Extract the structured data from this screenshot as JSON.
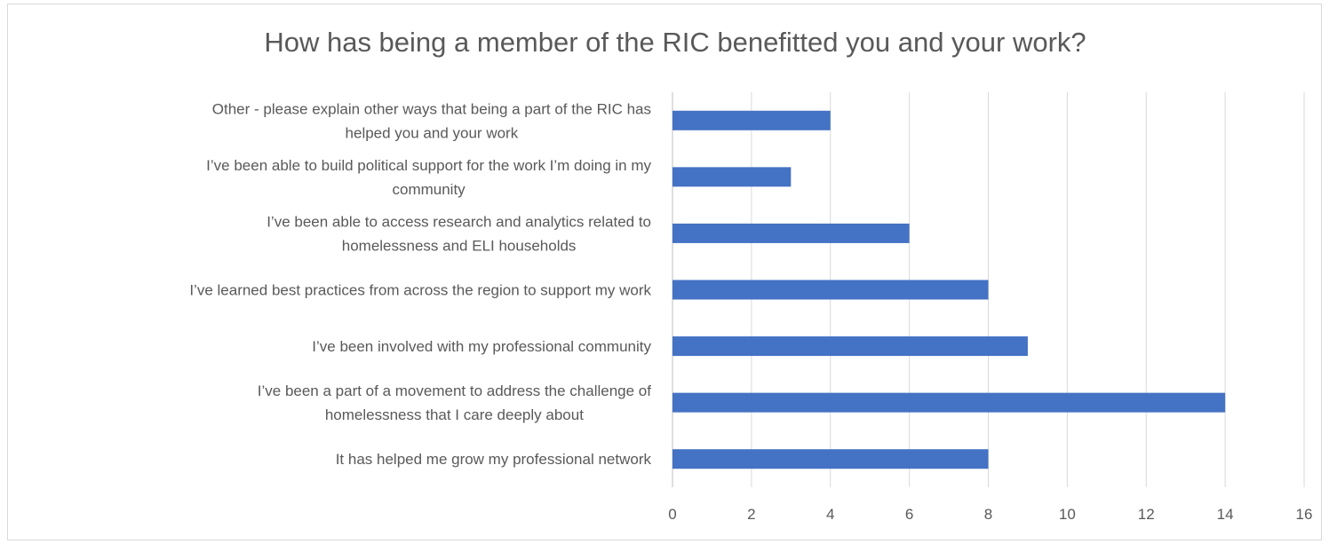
{
  "chart_data": {
    "type": "bar",
    "orientation": "horizontal",
    "title": "How has being a member of the RIC benefitted you and your work?",
    "xlabel": "",
    "ylabel": "",
    "xlim": [
      0,
      16
    ],
    "x_ticks": [
      0,
      2,
      4,
      6,
      8,
      10,
      12,
      14,
      16
    ],
    "grid": true,
    "legend": "none",
    "bar_color": "#4472c4",
    "categories": [
      [
        "Other - please explain other ways that being a part of the RIC has",
        "helped you and your work"
      ],
      [
        "I’ve been able to build political support for the work I’m doing in my",
        "community"
      ],
      [
        "I’ve been able to access research and analytics related to",
        "homelessness and ELI households"
      ],
      [
        "I’ve learned best practices from across the region to support my work"
      ],
      [
        "I’ve been involved with my professional community"
      ],
      [
        "I’ve been a part of a movement to address the challenge of",
        "homelessness that I care deeply about"
      ],
      [
        "It has helped me grow my professional network"
      ]
    ],
    "values": [
      4,
      3,
      6,
      8,
      9,
      14,
      8
    ]
  }
}
